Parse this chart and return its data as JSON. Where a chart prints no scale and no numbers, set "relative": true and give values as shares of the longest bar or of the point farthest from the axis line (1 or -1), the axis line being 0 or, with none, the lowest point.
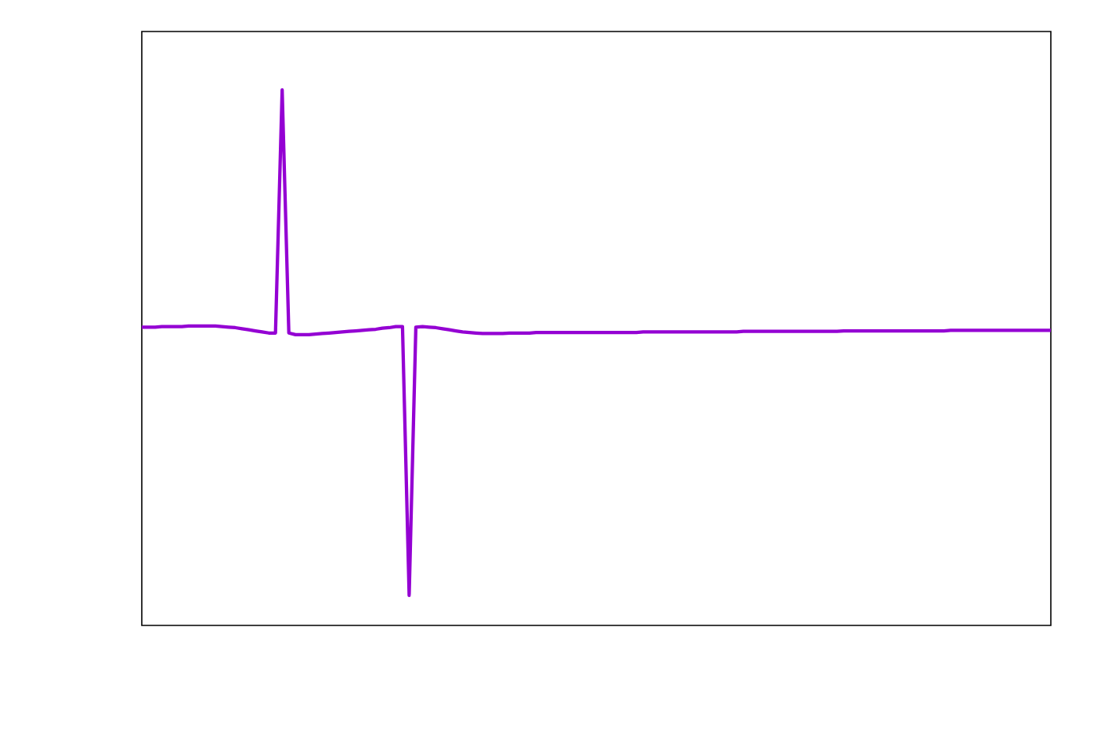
{
  "chart_data": {
    "type": "line",
    "relative": true,
    "color": "#9400d3",
    "categories": [
      null,
      null,
      null,
      null,
      null,
      null,
      null,
      null,
      null,
      null,
      null,
      null,
      null,
      null,
      null,
      null,
      null,
      null,
      null,
      null,
      null,
      null,
      null,
      null,
      null,
      null,
      null,
      null,
      null,
      null,
      null,
      null,
      null,
      null,
      null,
      null,
      null,
      null,
      null,
      null,
      null,
      null,
      null,
      null,
      null,
      null,
      null,
      null,
      null,
      null,
      null,
      null,
      null,
      null,
      null,
      null,
      null,
      null,
      null,
      null,
      null,
      null,
      null,
      null,
      null,
      null,
      null,
      null,
      null,
      null,
      null,
      null,
      null,
      null,
      null,
      null,
      null,
      null,
      null,
      null,
      null,
      null,
      null,
      null,
      null,
      null,
      null,
      null,
      null,
      null,
      null,
      null,
      null,
      null,
      null,
      null,
      null,
      null,
      null,
      null,
      null,
      null,
      null,
      null,
      null,
      null,
      null,
      null,
      null,
      null,
      null,
      null,
      null,
      null,
      null,
      null,
      null,
      null,
      null,
      null,
      null,
      null,
      null,
      null,
      null,
      null,
      null,
      null,
      null,
      null,
      null,
      null,
      null,
      null,
      null,
      null,
      null
    ],
    "values": [
      0.557,
      0.557,
      0.557,
      0.558,
      0.558,
      0.558,
      0.558,
      0.559,
      0.559,
      0.559,
      0.559,
      0.559,
      0.558,
      0.557,
      0.556,
      0.554,
      0.552,
      0.55,
      0.548,
      0.546,
      0.546,
      1.0,
      0.546,
      0.543,
      0.543,
      0.543,
      0.544,
      0.545,
      0.546,
      0.547,
      0.548,
      0.549,
      0.55,
      0.551,
      0.552,
      0.553,
      0.555,
      0.556,
      0.558,
      0.558,
      0.056,
      0.557,
      0.558,
      0.557,
      0.556,
      0.554,
      0.552,
      0.55,
      0.548,
      0.547,
      0.546,
      0.545,
      0.545,
      0.545,
      0.545,
      0.546,
      0.546,
      0.546,
      0.546,
      0.547,
      0.547,
      0.547,
      0.547,
      0.547,
      0.547,
      0.547,
      0.547,
      0.547,
      0.547,
      0.547,
      0.547,
      0.547,
      0.547,
      0.547,
      0.547,
      0.548,
      0.548,
      0.548,
      0.548,
      0.548,
      0.548,
      0.548,
      0.548,
      0.548,
      0.548,
      0.548,
      0.548,
      0.548,
      0.548,
      0.548,
      0.549,
      0.549,
      0.549,
      0.549,
      0.549,
      0.549,
      0.549,
      0.549,
      0.549,
      0.549,
      0.549,
      0.549,
      0.549,
      0.549,
      0.549,
      0.55,
      0.55,
      0.55,
      0.55,
      0.55,
      0.55,
      0.55,
      0.55,
      0.55,
      0.55,
      0.55,
      0.55,
      0.55,
      0.55,
      0.55,
      0.55,
      0.551,
      0.551,
      0.551,
      0.551,
      0.551,
      0.551,
      0.551,
      0.551,
      0.551,
      0.551,
      0.551,
      0.551,
      0.551,
      0.551,
      0.551,
      0.551
    ]
  }
}
